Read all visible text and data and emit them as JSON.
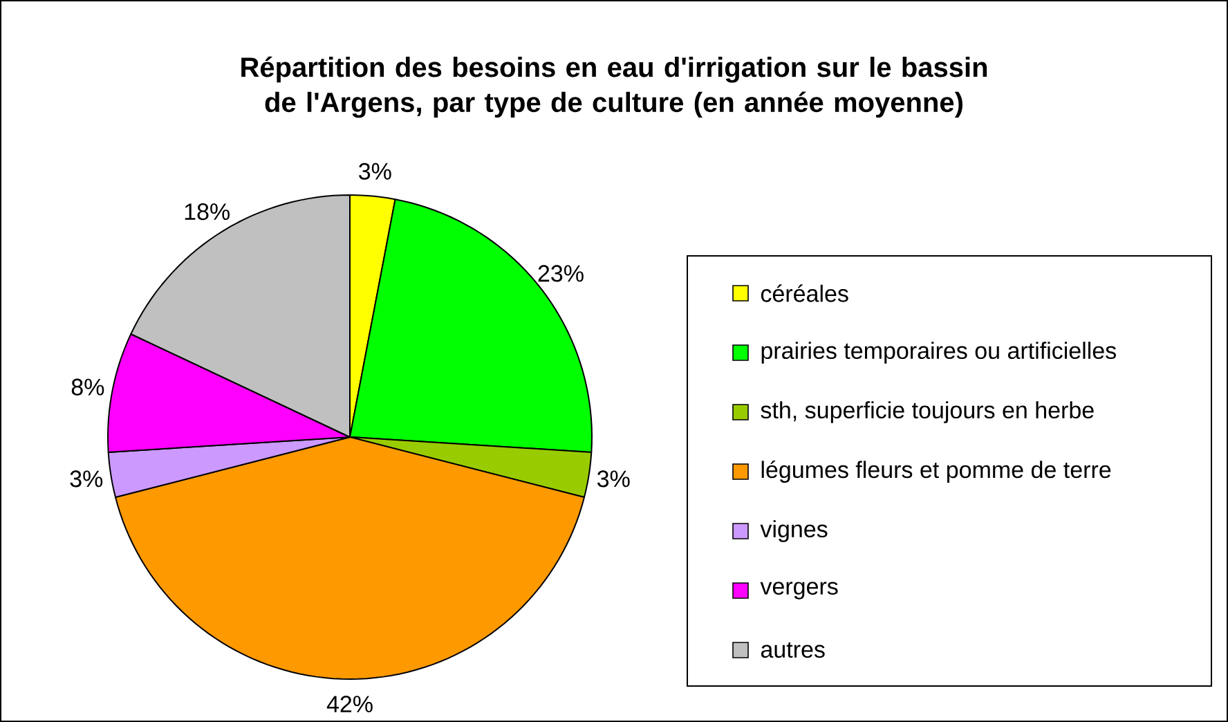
{
  "chart_data": {
    "type": "pie",
    "title": "Répartition des besoins en eau d'irrigation sur le bassin de l'Argens, par type de culture (en année moyenne)",
    "categories": [
      "céréales",
      "prairies temporaires ou artificielles",
      "sth, superficie toujours en herbe",
      "légumes fleurs et pomme de terre",
      "vignes",
      "vergers",
      "autres"
    ],
    "values": [
      3,
      23,
      3,
      42,
      3,
      8,
      18
    ],
    "value_labels": [
      "3%",
      "23%",
      "3%",
      "42%",
      "3%",
      "8%",
      "18%"
    ],
    "colors": [
      "#ffff00",
      "#00ff00",
      "#99cc00",
      "#ff9900",
      "#cc99ff",
      "#ff00ff",
      "#c0c0c0"
    ],
    "legend": "right"
  }
}
